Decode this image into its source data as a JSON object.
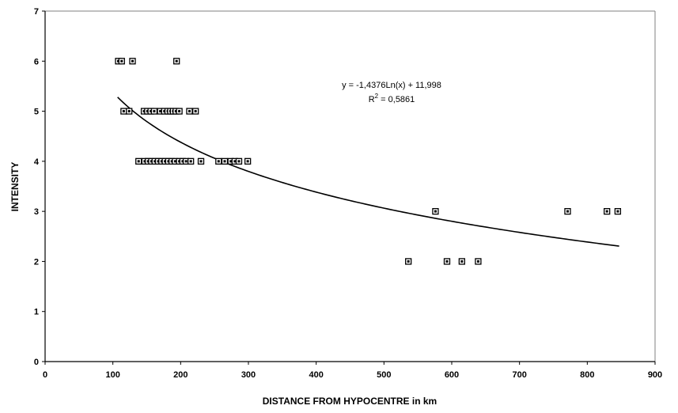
{
  "chart_data": {
    "type": "scatter",
    "title": "",
    "xlabel": "DISTANCE FROM HYPOCENTRE in km",
    "ylabel": "INTENSITY",
    "xlim": [
      0,
      900
    ],
    "ylim": [
      0,
      7
    ],
    "x_ticks": [
      "0",
      "100",
      "200",
      "300",
      "400",
      "500",
      "600",
      "700",
      "800",
      "900"
    ],
    "y_ticks": [
      "0",
      "1",
      "2",
      "3",
      "4",
      "5",
      "6",
      "7"
    ],
    "grid": false,
    "legend": "none",
    "colors": {
      "marker_fill": "#ffffff",
      "marker_edge": "#000000",
      "trendline": "#000000"
    },
    "trendline": {
      "type": "logarithmic",
      "equation": "y = -1,4376Ln(x) + 11,998",
      "r2_prefix": "R",
      "r2_sup": "2",
      "r2_suffix": " = 0,5861",
      "slope": -1.4376,
      "intercept": 11.998,
      "x_range": [
        107,
        847
      ]
    },
    "series": [
      {
        "marker": "square",
        "points": [
          {
            "x": 108,
            "y": 6
          },
          {
            "x": 113,
            "y": 6
          },
          {
            "x": 129,
            "y": 6
          },
          {
            "x": 194,
            "y": 6
          },
          {
            "x": 116,
            "y": 5
          },
          {
            "x": 124,
            "y": 5
          },
          {
            "x": 146,
            "y": 5
          },
          {
            "x": 151,
            "y": 5
          },
          {
            "x": 156,
            "y": 5
          },
          {
            "x": 161,
            "y": 5
          },
          {
            "x": 170,
            "y": 5
          },
          {
            "x": 176,
            "y": 5
          },
          {
            "x": 181,
            "y": 5
          },
          {
            "x": 185,
            "y": 5
          },
          {
            "x": 189,
            "y": 5
          },
          {
            "x": 193,
            "y": 5
          },
          {
            "x": 198,
            "y": 5
          },
          {
            "x": 213,
            "y": 5
          },
          {
            "x": 222,
            "y": 5
          },
          {
            "x": 138,
            "y": 4
          },
          {
            "x": 147,
            "y": 4
          },
          {
            "x": 152,
            "y": 4
          },
          {
            "x": 157,
            "y": 4
          },
          {
            "x": 162,
            "y": 4
          },
          {
            "x": 167,
            "y": 4
          },
          {
            "x": 172,
            "y": 4
          },
          {
            "x": 177,
            "y": 4
          },
          {
            "x": 182,
            "y": 4
          },
          {
            "x": 187,
            "y": 4
          },
          {
            "x": 192,
            "y": 4
          },
          {
            "x": 198,
            "y": 4
          },
          {
            "x": 203,
            "y": 4
          },
          {
            "x": 208,
            "y": 4
          },
          {
            "x": 215,
            "y": 4
          },
          {
            "x": 230,
            "y": 4
          },
          {
            "x": 256,
            "y": 4
          },
          {
            "x": 265,
            "y": 4
          },
          {
            "x": 274,
            "y": 4
          },
          {
            "x": 280,
            "y": 4
          },
          {
            "x": 286,
            "y": 4
          },
          {
            "x": 299,
            "y": 4
          },
          {
            "x": 576,
            "y": 3
          },
          {
            "x": 771,
            "y": 3
          },
          {
            "x": 829,
            "y": 3
          },
          {
            "x": 845,
            "y": 3
          },
          {
            "x": 536,
            "y": 2
          },
          {
            "x": 593,
            "y": 2
          },
          {
            "x": 615,
            "y": 2
          },
          {
            "x": 639,
            "y": 2
          }
        ]
      }
    ]
  }
}
